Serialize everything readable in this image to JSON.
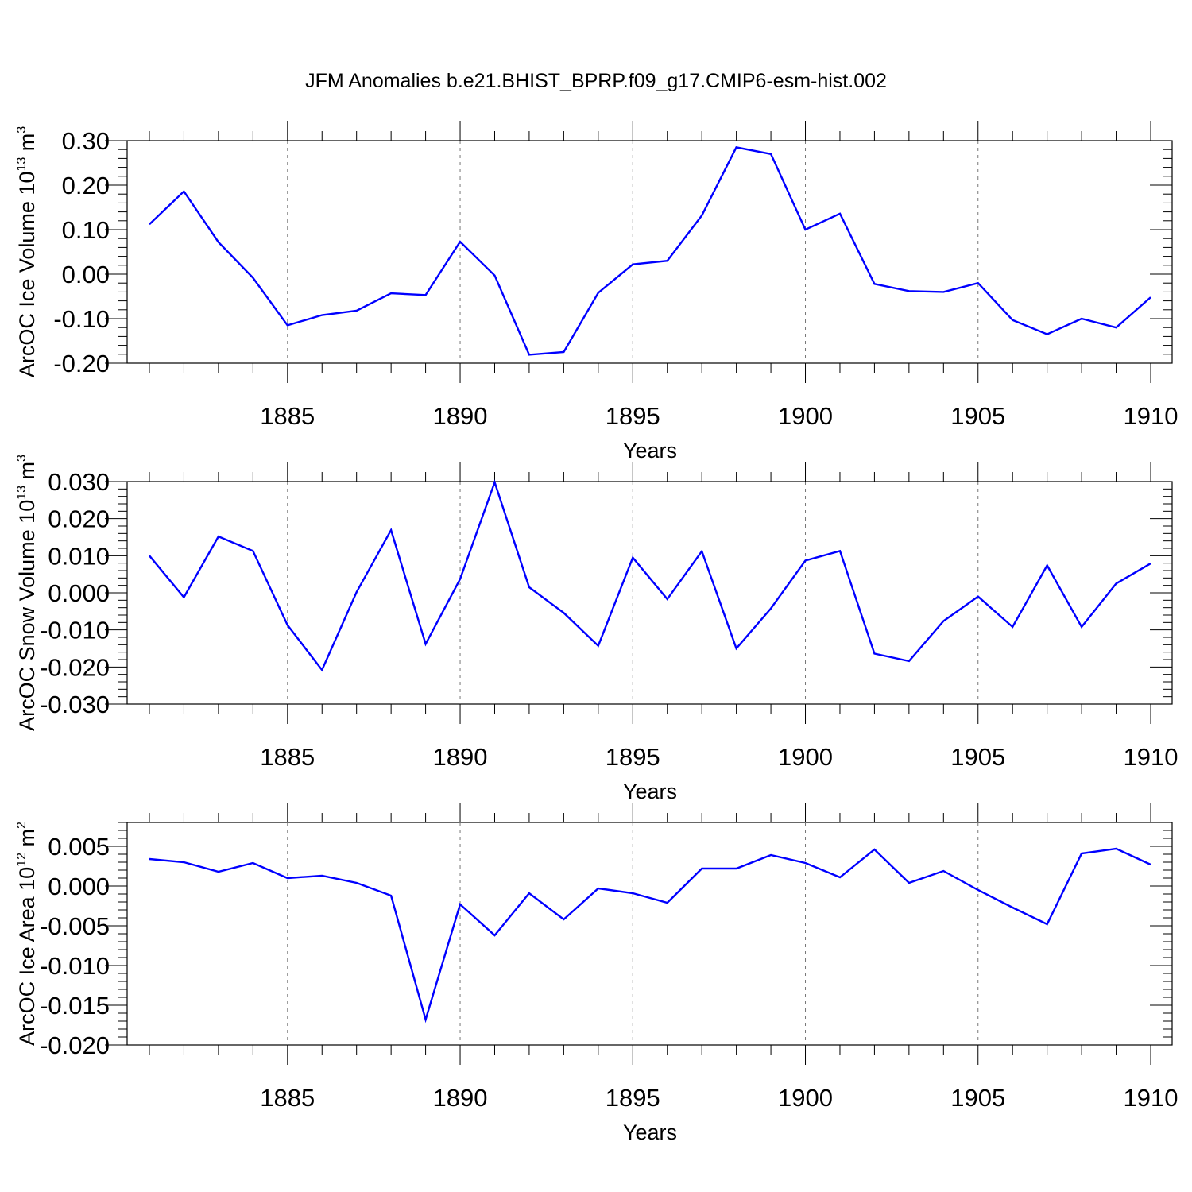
{
  "title": "JFM Anomalies b.e21.BHIST_BPRP.f09_g17.CMIP6-esm-hist.002",
  "line_color": "#0000ff",
  "chart_data": [
    {
      "type": "line",
      "series_name": "ArcOC Ice Volume",
      "ylabel": {
        "main": "ArcOC Ice Volume 10",
        "exp": "13",
        "unit": " m",
        "unit_exp": "3"
      },
      "xlabel": "Years",
      "xlim": [
        1881,
        1910
      ],
      "ylim": [
        -0.2,
        0.3
      ],
      "yticks": [
        -0.2,
        -0.1,
        0.0,
        0.1,
        0.2,
        0.3
      ],
      "ytick_labels": [
        "-0.20",
        "-0.10",
        "0.00",
        "0.10",
        "0.20",
        "0.30"
      ],
      "xticks": [
        1885,
        1890,
        1895,
        1900,
        1905,
        1910
      ],
      "xtick_labels": [
        "1885",
        "1890",
        "1895",
        "1900",
        "1905",
        "1910"
      ],
      "x": [
        1881,
        1882,
        1883,
        1884,
        1885,
        1886,
        1887,
        1888,
        1889,
        1890,
        1891,
        1892,
        1893,
        1894,
        1895,
        1896,
        1897,
        1898,
        1899,
        1900,
        1901,
        1902,
        1903,
        1904,
        1905,
        1906,
        1907,
        1908,
        1909,
        1910
      ],
      "values": [
        0.112,
        0.186,
        0.072,
        -0.008,
        -0.115,
        -0.092,
        -0.082,
        -0.043,
        -0.047,
        0.073,
        -0.003,
        -0.181,
        -0.175,
        -0.042,
        0.022,
        0.03,
        0.132,
        0.285,
        0.27,
        0.1,
        0.136,
        -0.022,
        -0.038,
        -0.04,
        -0.02,
        -0.103,
        -0.135,
        -0.1,
        -0.12,
        -0.052
      ]
    },
    {
      "type": "line",
      "series_name": "ArcOC Snow Volume",
      "ylabel": {
        "main": "ArcOC Snow Volume 10",
        "exp": "13",
        "unit": " m",
        "unit_exp": "3"
      },
      "xlabel": "Years",
      "xlim": [
        1881,
        1910
      ],
      "ylim": [
        -0.03,
        0.03
      ],
      "yticks": [
        -0.03,
        -0.02,
        -0.01,
        0.0,
        0.01,
        0.02,
        0.03
      ],
      "ytick_labels": [
        "-0.030",
        "-0.020",
        "-0.010",
        "0.000",
        "0.010",
        "0.020",
        "0.030"
      ],
      "xticks": [
        1885,
        1890,
        1895,
        1900,
        1905,
        1910
      ],
      "xtick_labels": [
        "1885",
        "1890",
        "1895",
        "1900",
        "1905",
        "1910"
      ],
      "x": [
        1881,
        1882,
        1883,
        1884,
        1885,
        1886,
        1887,
        1888,
        1889,
        1890,
        1891,
        1892,
        1893,
        1894,
        1895,
        1896,
        1897,
        1898,
        1899,
        1900,
        1901,
        1902,
        1903,
        1904,
        1905,
        1906,
        1907,
        1908,
        1909,
        1910
      ],
      "values": [
        0.01,
        -0.0012,
        0.0152,
        0.0113,
        -0.0087,
        -0.0208,
        0.0002,
        0.0169,
        -0.0138,
        0.0037,
        0.0298,
        0.0015,
        -0.0054,
        -0.0143,
        0.0095,
        -0.0017,
        0.0112,
        -0.015,
        -0.0042,
        0.0087,
        0.0113,
        -0.0164,
        -0.0184,
        -0.0076,
        -0.001,
        -0.0092,
        0.0074,
        -0.0092,
        0.0025,
        0.0079
      ]
    },
    {
      "type": "line",
      "series_name": "ArcOC Ice Area",
      "ylabel": {
        "main": "ArcOC Ice Area 10",
        "exp": "12",
        "unit": " m",
        "unit_exp": "2"
      },
      "xlabel": "Years",
      "xlim": [
        1881,
        1910
      ],
      "ylim": [
        -0.02,
        0.008
      ],
      "yticks": [
        -0.02,
        -0.015,
        -0.01,
        -0.005,
        0.0,
        0.005
      ],
      "ytick_labels": [
        "-0.020",
        "-0.015",
        "-0.010",
        "-0.005",
        "0.000",
        "0.005"
      ],
      "xticks": [
        1885,
        1890,
        1895,
        1900,
        1905,
        1910
      ],
      "xtick_labels": [
        "1885",
        "1890",
        "1895",
        "1900",
        "1905",
        "1910"
      ],
      "x": [
        1881,
        1882,
        1883,
        1884,
        1885,
        1886,
        1887,
        1888,
        1889,
        1890,
        1891,
        1892,
        1893,
        1894,
        1895,
        1896,
        1897,
        1898,
        1899,
        1900,
        1901,
        1902,
        1903,
        1904,
        1905,
        1906,
        1907,
        1908,
        1909,
        1910
      ],
      "values": [
        0.0034,
        0.003,
        0.0018,
        0.0029,
        0.001,
        0.0013,
        0.0004,
        -0.0012,
        -0.0168,
        -0.0023,
        -0.0062,
        -0.0009,
        -0.0042,
        -0.0003,
        -0.0009,
        -0.0021,
        0.0022,
        0.0022,
        0.0039,
        0.0029,
        0.0011,
        0.0046,
        0.0004,
        0.0019,
        -0.0005,
        -0.0027,
        -0.0048,
        0.0041,
        0.0047,
        0.0027
      ]
    }
  ]
}
